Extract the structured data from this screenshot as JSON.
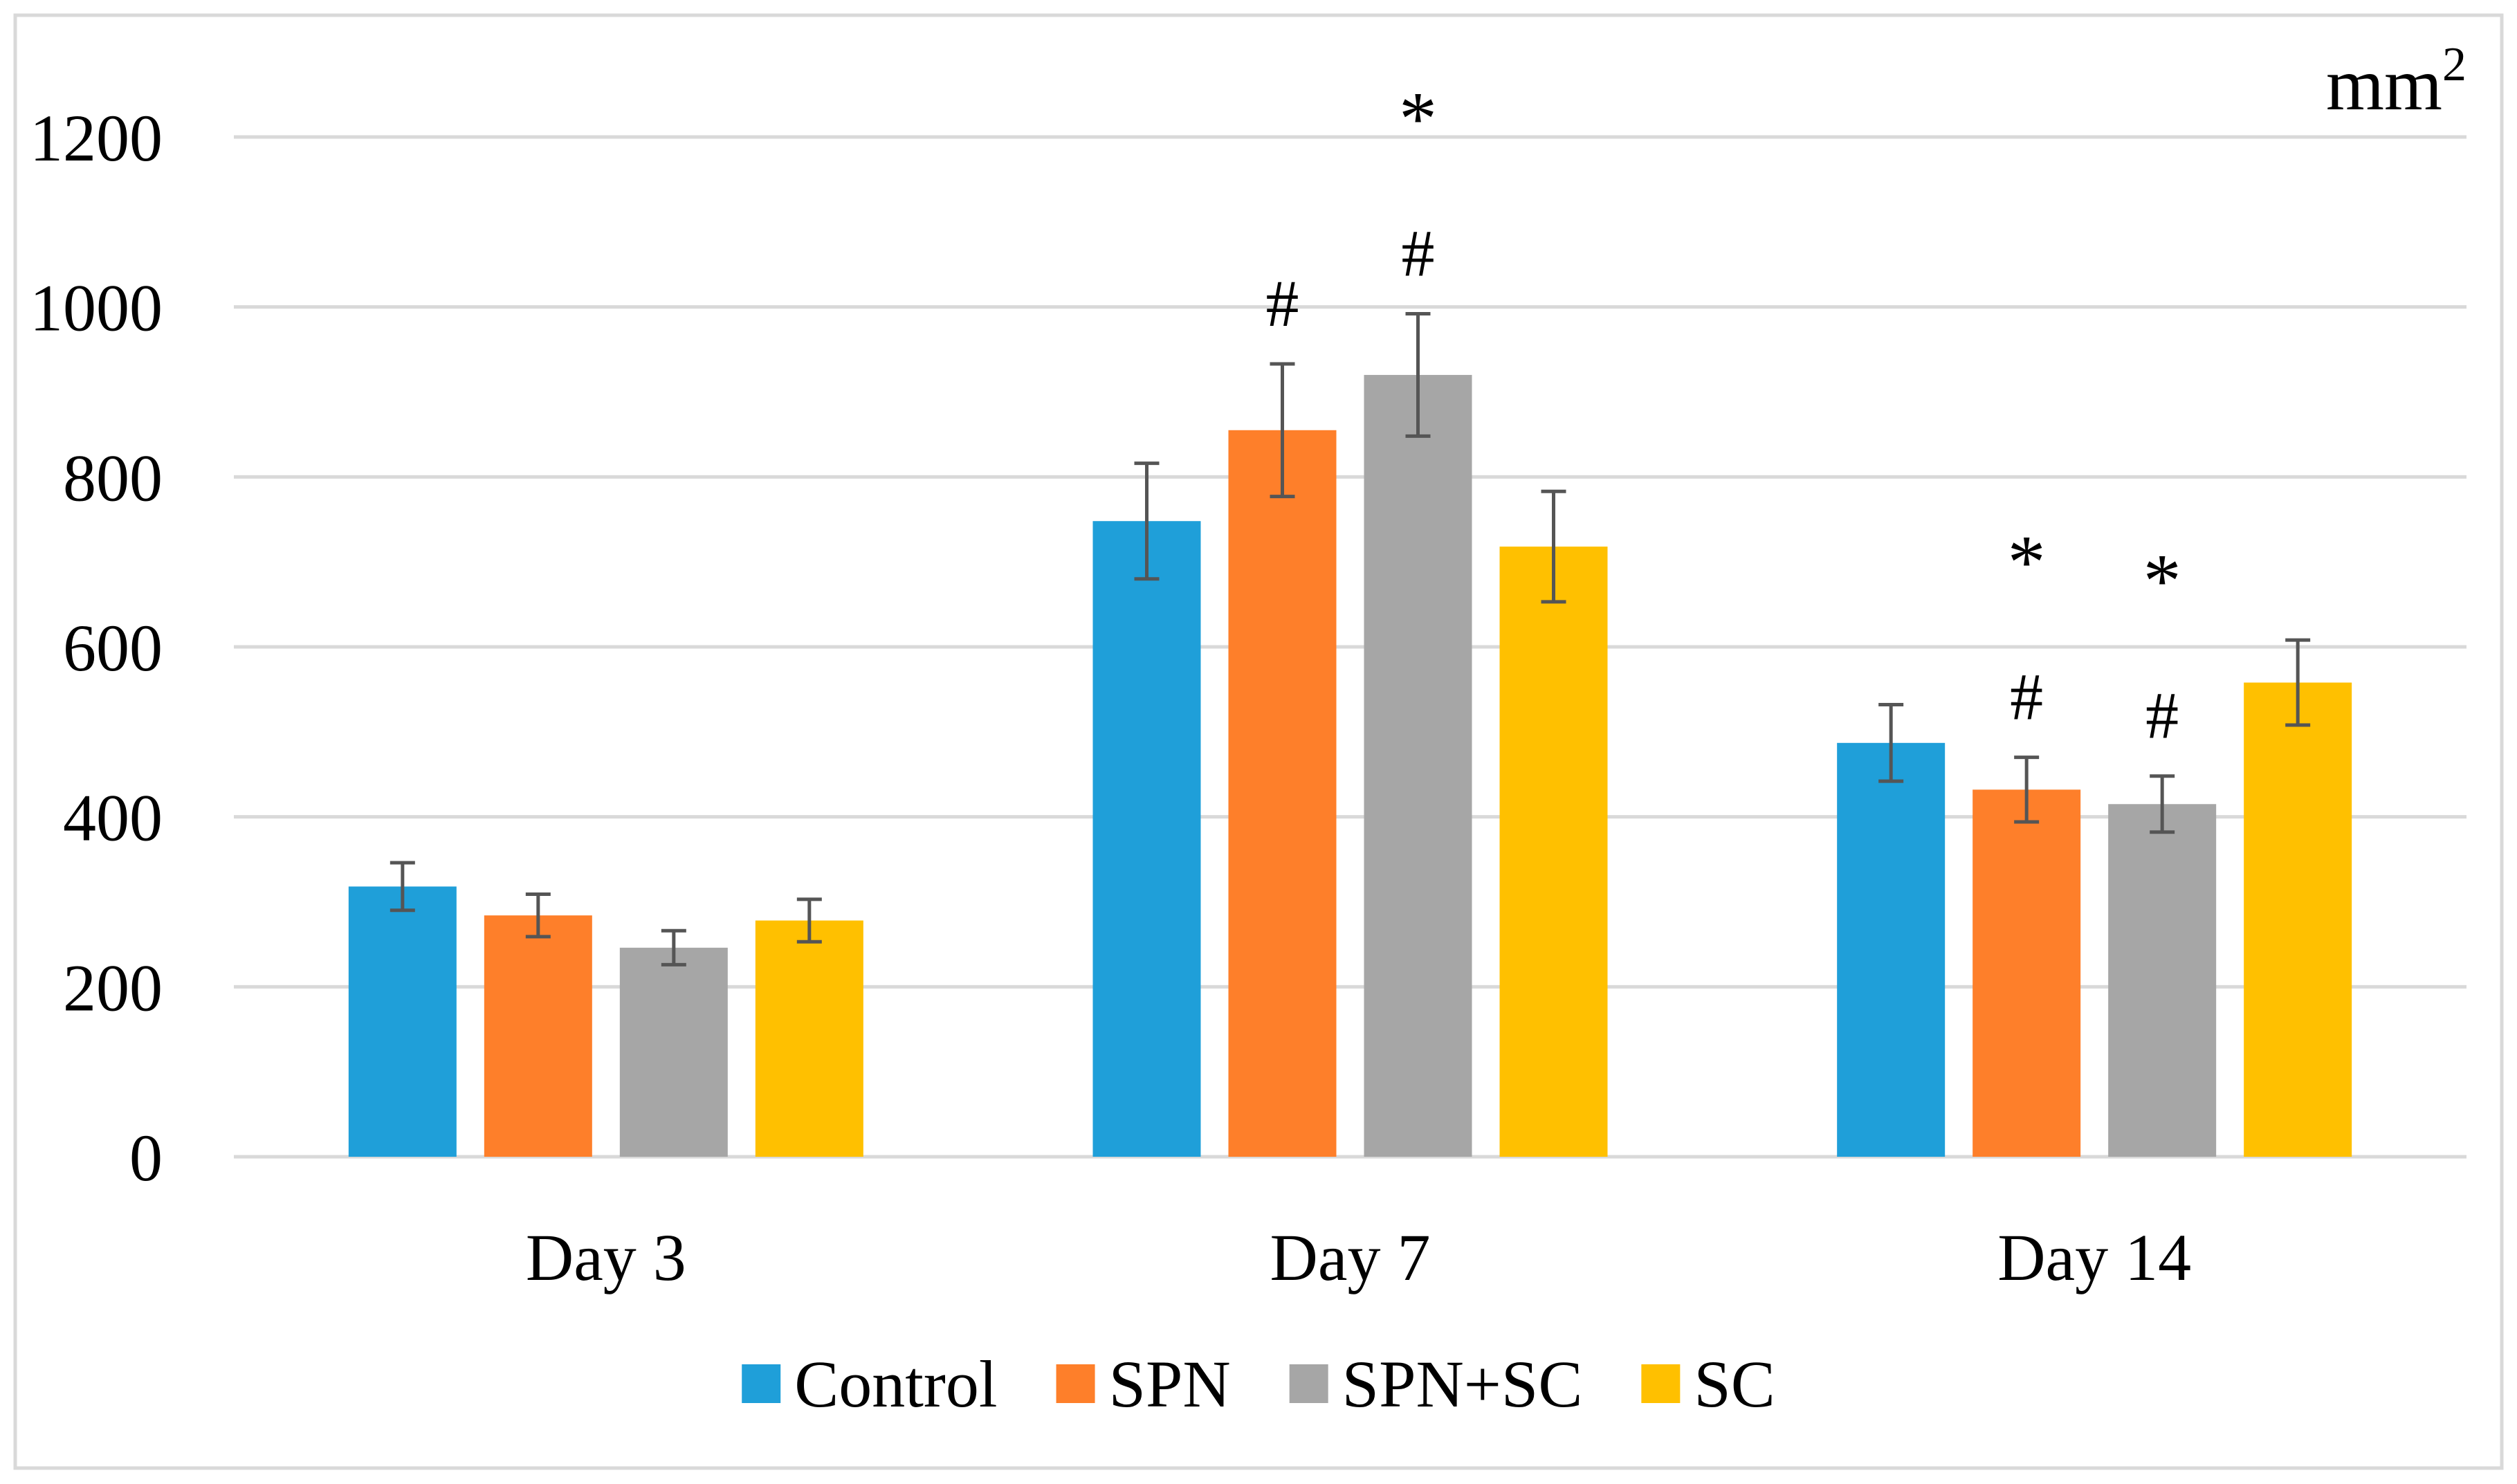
{
  "chart_data": {
    "type": "bar",
    "title": "",
    "xlabel": "",
    "ylabel": "",
    "unit_label": "mm",
    "unit_superscript": "2",
    "categories": [
      "Day 3",
      "Day 7",
      "Day 14"
    ],
    "ylim": [
      0,
      1200
    ],
    "yticks": [
      0,
      200,
      400,
      600,
      800,
      1000,
      1200
    ],
    "grid": true,
    "legend": "bottom",
    "series": [
      {
        "name": "Control",
        "color": "#1f9fd9",
        "values": [
          318,
          748,
          487
        ],
        "errors": [
          28,
          68,
          45
        ]
      },
      {
        "name": "SPN",
        "color": "#fe7f2a",
        "values": [
          284,
          855,
          432
        ],
        "errors": [
          25,
          78,
          38
        ]
      },
      {
        "name": "SPN+SC",
        "color": "#a6a6a6",
        "values": [
          246,
          920,
          415
        ],
        "errors": [
          20,
          72,
          33
        ]
      },
      {
        "name": "SC",
        "color": "#ffc000",
        "values": [
          278,
          718,
          558
        ],
        "errors": [
          25,
          65,
          50
        ]
      }
    ],
    "annotations": [
      {
        "category": 1,
        "series": 1,
        "symbols": [
          "#"
        ]
      },
      {
        "category": 1,
        "series": 2,
        "symbols": [
          "#",
          "*"
        ]
      },
      {
        "category": 2,
        "series": 1,
        "symbols": [
          "#",
          "*"
        ]
      },
      {
        "category": 2,
        "series": 2,
        "symbols": [
          "#",
          "*"
        ]
      }
    ]
  }
}
